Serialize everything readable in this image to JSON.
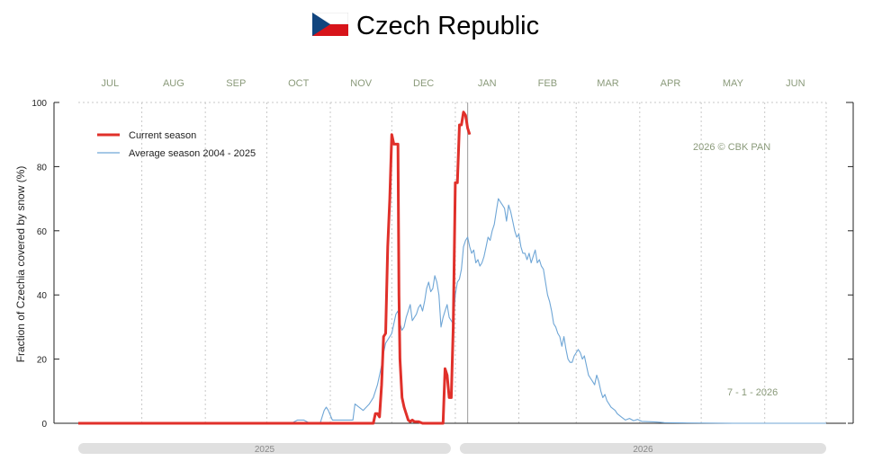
{
  "header": {
    "title": "Czech Republic",
    "flag_icon": "czech-flag-icon"
  },
  "colors": {
    "current": "#e0302a",
    "average": "#6fa6d6",
    "flag_white": "#ffffff",
    "flag_red": "#d7141a",
    "flag_blue": "#11457e",
    "grid": "#c8c8c8",
    "year_bar": "#e0e0e0"
  },
  "chart_data": {
    "type": "line",
    "title": "Czech Republic",
    "ylabel": "Fraction of  Czechia  covered by snow (%)",
    "xlabel": "",
    "ylim": [
      0,
      100
    ],
    "yticks": [
      0,
      20,
      40,
      60,
      80,
      100
    ],
    "x_unit": "days since 1 Jul 2025",
    "xlim": [
      0,
      365
    ],
    "months": [
      {
        "label": "JUL",
        "start": 0
      },
      {
        "label": "AUG",
        "start": 31
      },
      {
        "label": "SEP",
        "start": 62
      },
      {
        "label": "OCT",
        "start": 92
      },
      {
        "label": "NOV",
        "start": 123
      },
      {
        "label": "DEC",
        "start": 153
      },
      {
        "label": "JAN",
        "start": 184
      },
      {
        "label": "FEB",
        "start": 215
      },
      {
        "label": "MAR",
        "start": 243
      },
      {
        "label": "APR",
        "start": 274
      },
      {
        "label": "MAY",
        "start": 304
      },
      {
        "label": "JUN",
        "start": 335
      }
    ],
    "years": [
      {
        "label": "2025",
        "start": 0,
        "end": 184
      },
      {
        "label": "2026",
        "start": 184,
        "end": 365
      }
    ],
    "legend": {
      "placement": "top-left",
      "current": "Current season",
      "average": "Average season 2004 - 2025"
    },
    "credit": "2026  © CBK PAN",
    "date_label": "7 - 1 - 2026",
    "current_day": 190,
    "series": [
      {
        "name": "Current season",
        "role": "current",
        "points": [
          [
            0,
            0
          ],
          [
            140,
            0
          ],
          [
            144,
            0
          ],
          [
            145,
            3
          ],
          [
            146,
            3
          ],
          [
            147,
            2
          ],
          [
            148,
            12
          ],
          [
            149,
            27
          ],
          [
            150,
            28
          ],
          [
            151,
            55
          ],
          [
            152,
            70
          ],
          [
            153,
            90
          ],
          [
            154,
            87
          ],
          [
            155,
            87
          ],
          [
            156,
            87
          ],
          [
            156.5,
            40
          ],
          [
            157,
            20
          ],
          [
            158,
            8
          ],
          [
            159,
            5
          ],
          [
            160,
            3
          ],
          [
            161,
            1
          ],
          [
            162,
            0.5
          ],
          [
            163,
            1
          ],
          [
            164,
            0.5
          ],
          [
            166,
            0.5
          ],
          [
            168,
            0
          ],
          [
            177,
            0
          ],
          [
            178,
            0
          ],
          [
            179,
            17
          ],
          [
            180,
            15
          ],
          [
            181,
            8
          ],
          [
            182,
            8
          ],
          [
            183,
            30
          ],
          [
            184,
            75
          ],
          [
            185,
            75
          ],
          [
            186,
            93
          ],
          [
            187,
            93
          ],
          [
            188,
            97
          ],
          [
            189,
            96
          ],
          [
            190,
            92
          ],
          [
            191,
            90
          ]
        ]
      },
      {
        "name": "Average season 2004 - 2025",
        "role": "average",
        "points": [
          [
            0,
            0
          ],
          [
            104,
            0
          ],
          [
            107,
            1
          ],
          [
            110,
            1
          ],
          [
            113,
            0
          ],
          [
            118,
            0
          ],
          [
            120,
            4
          ],
          [
            121,
            5
          ],
          [
            122,
            4
          ],
          [
            124,
            1
          ],
          [
            128,
            1
          ],
          [
            132,
            1
          ],
          [
            134,
            1
          ],
          [
            135,
            6
          ],
          [
            137,
            5
          ],
          [
            139,
            4
          ],
          [
            142,
            6
          ],
          [
            144,
            8
          ],
          [
            146,
            12
          ],
          [
            148,
            18
          ],
          [
            149,
            22
          ],
          [
            150,
            25
          ],
          [
            152,
            27
          ],
          [
            153,
            28
          ],
          [
            155,
            34
          ],
          [
            156,
            35
          ],
          [
            157,
            31
          ],
          [
            158,
            29
          ],
          [
            159,
            30
          ],
          [
            160,
            33
          ],
          [
            161,
            35
          ],
          [
            162,
            37
          ],
          [
            163,
            32
          ],
          [
            164,
            33
          ],
          [
            165,
            34
          ],
          [
            166,
            36
          ],
          [
            167,
            37
          ],
          [
            168,
            35
          ],
          [
            169,
            38
          ],
          [
            170,
            42
          ],
          [
            171,
            44
          ],
          [
            172,
            41
          ],
          [
            173,
            42
          ],
          [
            174,
            46
          ],
          [
            175,
            44
          ],
          [
            176,
            40
          ],
          [
            177,
            30
          ],
          [
            178,
            33
          ],
          [
            179,
            35
          ],
          [
            180,
            37
          ],
          [
            181,
            33
          ],
          [
            182,
            32
          ],
          [
            183,
            31
          ],
          [
            184,
            40
          ],
          [
            185,
            44
          ],
          [
            186,
            45
          ],
          [
            187,
            48
          ],
          [
            188,
            55
          ],
          [
            189,
            57
          ],
          [
            190,
            58
          ],
          [
            191,
            55
          ],
          [
            192,
            53
          ],
          [
            193,
            54
          ],
          [
            194,
            50
          ],
          [
            195,
            51
          ],
          [
            196,
            49
          ],
          [
            197,
            50
          ],
          [
            198,
            52
          ],
          [
            199,
            55
          ],
          [
            200,
            58
          ],
          [
            201,
            57
          ],
          [
            202,
            60
          ],
          [
            203,
            62
          ],
          [
            204,
            66
          ],
          [
            205,
            70
          ],
          [
            206,
            69
          ],
          [
            207,
            68
          ],
          [
            208,
            67
          ],
          [
            209,
            63
          ],
          [
            210,
            68
          ],
          [
            211,
            66
          ],
          [
            212,
            63
          ],
          [
            213,
            60
          ],
          [
            214,
            58
          ],
          [
            215,
            59
          ],
          [
            216,
            55
          ],
          [
            217,
            53
          ],
          [
            218,
            53
          ],
          [
            219,
            51
          ],
          [
            220,
            53
          ],
          [
            221,
            50
          ],
          [
            222,
            52
          ],
          [
            223,
            54
          ],
          [
            224,
            50
          ],
          [
            225,
            51
          ],
          [
            226,
            49
          ],
          [
            227,
            48
          ],
          [
            228,
            44
          ],
          [
            229,
            40
          ],
          [
            230,
            38
          ],
          [
            231,
            35
          ],
          [
            232,
            31
          ],
          [
            233,
            30
          ],
          [
            234,
            28
          ],
          [
            235,
            27
          ],
          [
            236,
            24
          ],
          [
            237,
            27
          ],
          [
            238,
            23
          ],
          [
            239,
            20
          ],
          [
            240,
            19
          ],
          [
            241,
            19
          ],
          [
            242,
            21
          ],
          [
            243,
            22
          ],
          [
            244,
            23
          ],
          [
            245,
            22
          ],
          [
            246,
            20
          ],
          [
            247,
            21
          ],
          [
            248,
            18
          ],
          [
            249,
            15
          ],
          [
            250,
            14
          ],
          [
            251,
            13
          ],
          [
            252,
            12
          ],
          [
            253,
            15
          ],
          [
            254,
            13
          ],
          [
            255,
            10
          ],
          [
            256,
            8
          ],
          [
            257,
            9
          ],
          [
            258,
            7
          ],
          [
            259,
            6
          ],
          [
            260,
            5
          ],
          [
            262,
            4
          ],
          [
            263,
            3
          ],
          [
            265,
            2
          ],
          [
            267,
            1
          ],
          [
            269,
            1.5
          ],
          [
            271,
            0.8
          ],
          [
            273,
            1.2
          ],
          [
            275,
            0.6
          ],
          [
            278,
            0.5
          ],
          [
            282,
            0.4
          ],
          [
            286,
            0.2
          ],
          [
            295,
            0.1
          ],
          [
            320,
            0
          ],
          [
            365,
            0
          ]
        ]
      }
    ]
  }
}
